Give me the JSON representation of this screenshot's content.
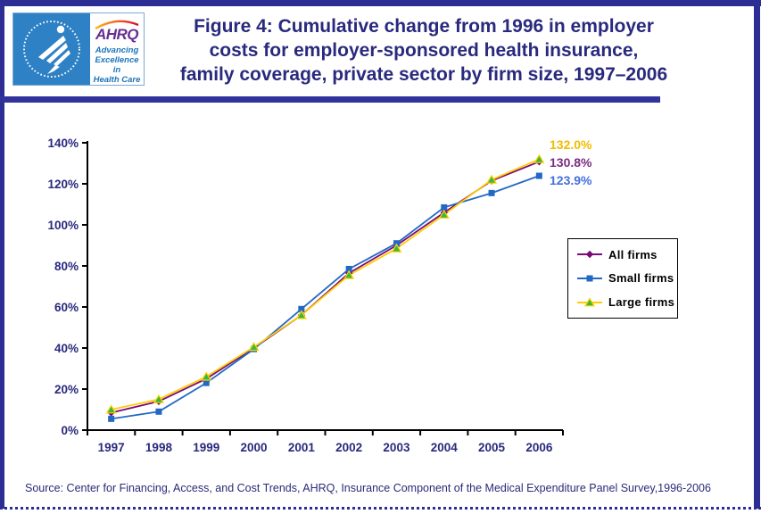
{
  "header": {
    "title_lines": [
      "Figure 4: Cumulative change from 1996 in employer",
      "costs for employer-sponsored health insurance,",
      "family coverage, private sector by firm size, 1997–2006"
    ],
    "logo": {
      "ahrq_acronym": "AHRQ",
      "tagline_lines": [
        "Advancing",
        "Excellence in",
        "Health Care"
      ]
    }
  },
  "chart_data": {
    "type": "line",
    "title": "",
    "xlabel": "",
    "ylabel": "",
    "x_categories": [
      "1997",
      "1998",
      "1999",
      "2000",
      "2001",
      "2002",
      "2003",
      "2004",
      "2005",
      "2006"
    ],
    "ylim": [
      0,
      140
    ],
    "ytick_step": 20,
    "ytick_labels": [
      "0%",
      "20%",
      "40%",
      "60%",
      "80%",
      "100%",
      "120%",
      "140%"
    ],
    "grid": false,
    "legend_position": "middle-right",
    "tick_label_color": "#29297E",
    "axis_color": "#000000",
    "series": [
      {
        "name": "All firms",
        "marker": "diamond",
        "line_color": "#7A0A7A",
        "marker_color": "#7A0A7A",
        "values": [
          8.5,
          14,
          25,
          40,
          56,
          76.5,
          90,
          106,
          121.5,
          130.8
        ],
        "end_label": "130.8%",
        "end_label_color": "#7B2C84"
      },
      {
        "name": "Small firms",
        "marker": "square",
        "line_color": "#2368C4",
        "marker_color": "#2368C4",
        "values": [
          5.5,
          9,
          23,
          39.5,
          59,
          78.5,
          91,
          108.5,
          115.5,
          123.9
        ],
        "end_label": "123.9%",
        "end_label_color": "#4470DD"
      },
      {
        "name": "Large firms",
        "marker": "triangle",
        "line_color": "#FFCC00",
        "marker_color": "#3CB83C",
        "marker_edge_color": "#FFD400",
        "values": [
          10,
          15,
          26,
          40.5,
          56,
          75.5,
          88.5,
          105,
          122,
          132.0
        ],
        "end_label": "132.0%",
        "end_label_color": "#F0BD00"
      }
    ]
  },
  "footer": {
    "source_text": "Source: Center for Financing, Access, and Cost Trends, AHRQ, Insurance Component of the Medical Expenditure Panel Survey,1996-2006"
  },
  "colors": {
    "page_border": "#2D2D96",
    "title_text": "#29297E"
  }
}
